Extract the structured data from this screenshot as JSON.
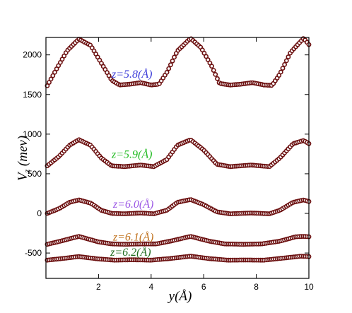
{
  "chart_data": {
    "type": "scatter",
    "xlabel": "y(Å)",
    "ylabel": "V",
    "ylabel_subscript": "z",
    "ylabel_suffix": " (mev)",
    "xlim": [
      0,
      10
    ],
    "ylim": [
      -820,
      2220
    ],
    "xticks": [
      2,
      4,
      6,
      8,
      10
    ],
    "xtick_labels": [
      "2",
      "4",
      "6",
      "8",
      "10"
    ],
    "yticks": [
      -500,
      0,
      500,
      1000,
      1500,
      2000
    ],
    "ytick_labels": [
      "-500",
      "0",
      "500",
      "1000",
      "1500",
      "2000"
    ],
    "grid": false,
    "marker_color": "#6b0f0f",
    "marker_fill": "#ffffff",
    "series": [
      {
        "annotation": "z=5.8(Å)",
        "annotation_color": "#3b3bd9",
        "annotation_x": 2.5,
        "annotation_y": 1710,
        "x": [
          0.05,
          0.4,
          0.8,
          1.25,
          1.7,
          2.1,
          2.5,
          2.8,
          3.2,
          3.6,
          4.0,
          4.3,
          4.6,
          5.0,
          5.5,
          5.9,
          6.3,
          6.6,
          7.0,
          7.4,
          7.85,
          8.3,
          8.6,
          8.9,
          9.3,
          9.8,
          10.0
        ],
        "values": [
          1610,
          1820,
          2050,
          2200,
          2120,
          1900,
          1680,
          1620,
          1630,
          1650,
          1620,
          1630,
          1780,
          2050,
          2210,
          2090,
          1860,
          1640,
          1620,
          1630,
          1650,
          1620,
          1615,
          1760,
          2030,
          2210,
          2130
        ]
      },
      {
        "annotation": "z=5.9(Å)",
        "annotation_color": "#22bb22",
        "annotation_x": 2.5,
        "annotation_y": 700,
        "x": [
          0.05,
          0.5,
          0.9,
          1.25,
          1.7,
          2.1,
          2.5,
          3.0,
          3.6,
          4.1,
          4.6,
          5.0,
          5.5,
          6.0,
          6.5,
          7.0,
          7.8,
          8.5,
          8.9,
          9.4,
          9.8,
          10.0
        ],
        "values": [
          600,
          720,
          860,
          930,
          860,
          700,
          600,
          590,
          610,
          590,
          680,
          860,
          930,
          800,
          620,
          590,
          610,
          590,
          700,
          880,
          920,
          880
        ]
      },
      {
        "annotation": "z=6.0(Å)",
        "annotation_color": "#9a55e5",
        "annotation_x": 2.55,
        "annotation_y": 70,
        "x": [
          0.05,
          0.5,
          0.9,
          1.25,
          1.7,
          2.1,
          2.5,
          3.0,
          3.6,
          4.1,
          4.6,
          5.0,
          5.5,
          6.0,
          6.5,
          7.0,
          7.8,
          8.5,
          8.9,
          9.4,
          9.8,
          10.0
        ],
        "values": [
          0,
          60,
          140,
          170,
          130,
          40,
          0,
          -5,
          5,
          -5,
          40,
          140,
          175,
          110,
          20,
          -5,
          5,
          -5,
          40,
          140,
          170,
          150
        ]
      },
      {
        "annotation": "z=6.1(Å)",
        "annotation_color": "#c0711c",
        "annotation_x": 2.55,
        "annotation_y": -345,
        "x": [
          0.05,
          0.5,
          1.25,
          2.0,
          2.5,
          3.0,
          3.6,
          4.2,
          4.8,
          5.5,
          6.2,
          6.8,
          7.5,
          8.2,
          8.9,
          9.5,
          9.8,
          10.0
        ],
        "values": [
          -390,
          -355,
          -290,
          -360,
          -385,
          -390,
          -385,
          -385,
          -345,
          -290,
          -350,
          -385,
          -390,
          -385,
          -350,
          -295,
          -290,
          -295
        ]
      },
      {
        "annotation": "z=6.2(Å)",
        "annotation_color": "#1e6b1e",
        "annotation_x": 2.45,
        "annotation_y": -535,
        "x": [
          0.05,
          0.6,
          1.25,
          2.0,
          2.6,
          3.3,
          4.0,
          4.7,
          5.5,
          6.2,
          6.9,
          7.6,
          8.3,
          9.0,
          9.7,
          10.0
        ],
        "values": [
          -590,
          -570,
          -545,
          -575,
          -590,
          -585,
          -590,
          -570,
          -540,
          -570,
          -590,
          -588,
          -590,
          -565,
          -540,
          -545
        ]
      }
    ]
  }
}
